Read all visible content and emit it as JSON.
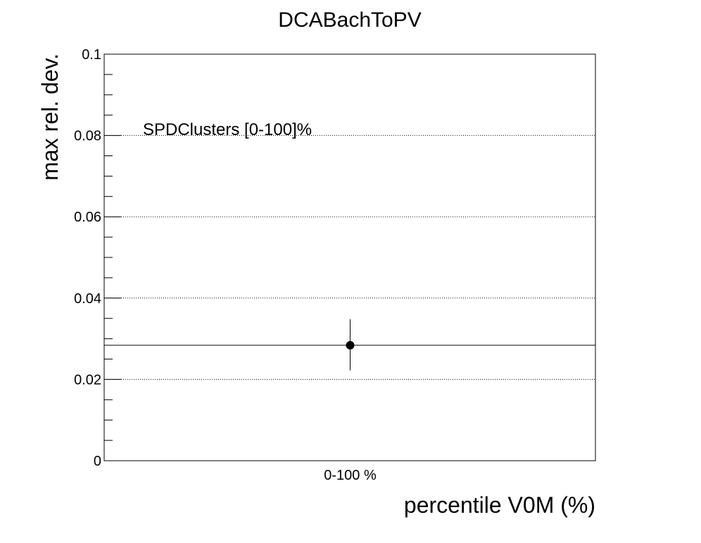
{
  "chart_data": {
    "type": "scatter",
    "title": "DCABachToPV",
    "xlabel": "percentile V0M (%)",
    "ylabel": "max rel. dev.",
    "annotation": "SPDClusters [0-100]%",
    "categories": [
      "0-100 %"
    ],
    "ylim": [
      0,
      0.1
    ],
    "yticks": [
      "0",
      "0.02",
      "0.04",
      "0.06",
      "0.08",
      "0.1"
    ],
    "ytick_values": [
      0,
      0.02,
      0.04,
      0.06,
      0.08,
      0.1
    ],
    "grid": "horizontal dotted",
    "points": [
      {
        "category": "0-100 %",
        "y": 0.0284,
        "yerr_low": 0.0222,
        "yerr_high": 0.0348
      }
    ],
    "reference_line_y": 0.0284,
    "colors": {
      "marker": "#000000",
      "grid": "#000000",
      "axis": "#000000"
    }
  }
}
